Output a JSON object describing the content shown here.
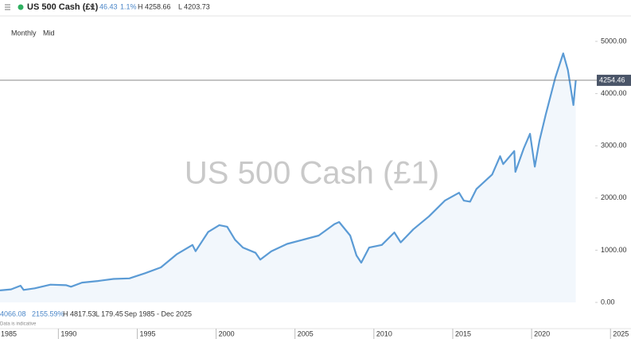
{
  "chart_data": {
    "type": "line",
    "title": "US 500 Cash (£1)",
    "header": {
      "change": "46.43",
      "change_pct": "1.1%",
      "high": "H 4258.66",
      "low": "L 4203.73"
    },
    "controls": [
      "Monthly",
      "Mid"
    ],
    "footer": {
      "close": "4066.08",
      "pct": "2155.59%",
      "high": "H 4817.53",
      "low": "L 179.45",
      "range": "Sep 1985 - Dec 2025",
      "note": "Data is indicative"
    },
    "last_value": 4254.46,
    "color": "#5b9bd5",
    "fill": "#f2f7fc",
    "grid": false,
    "x": [
      1986.3,
      1987.0,
      1987.6,
      1987.8,
      1988.5,
      1989.5,
      1990.5,
      1990.8,
      1991.5,
      1992.5,
      1993.5,
      1994.5,
      1995.5,
      1996.5,
      1997.5,
      1998.5,
      1998.7,
      1999.5,
      2000.2,
      2000.7,
      2001.2,
      2001.7,
      2002.5,
      2002.8,
      2003.5,
      2004.5,
      2005.5,
      2006.5,
      2007.5,
      2007.8,
      2008.5,
      2008.9,
      2009.2,
      2009.7,
      2010.5,
      2011.3,
      2011.7,
      2012.5,
      2013.5,
      2014.5,
      2015.4,
      2015.7,
      2016.1,
      2016.5,
      2017.5,
      2018.0,
      2018.2,
      2018.9,
      2018.97,
      2019.5,
      2019.9,
      2020.2,
      2020.5,
      2020.9,
      2021.5,
      2022.0,
      2022.3,
      2022.65,
      2022.8
    ],
    "values": [
      230,
      250,
      320,
      240,
      270,
      340,
      330,
      300,
      380,
      410,
      450,
      460,
      560,
      670,
      920,
      1100,
      980,
      1350,
      1480,
      1450,
      1200,
      1050,
      950,
      820,
      980,
      1120,
      1200,
      1280,
      1500,
      1540,
      1280,
      900,
      760,
      1050,
      1100,
      1340,
      1150,
      1400,
      1650,
      1950,
      2100,
      1950,
      1930,
      2170,
      2450,
      2800,
      2650,
      2900,
      2500,
      2950,
      3230,
      2600,
      3100,
      3600,
      4300,
      4770,
      4450,
      3780,
      4254.46
    ],
    "xlim": [
      1986.3,
      2026.3
    ],
    "xticks": [
      1985,
      1990,
      1995,
      2000,
      2005,
      2010,
      2015,
      2020,
      2025
    ],
    "ylim": [
      0,
      5000
    ],
    "yticks": [
      {
        "value": 0,
        "label": "0.00"
      },
      {
        "value": 1000,
        "label": "1000.00"
      },
      {
        "value": 2000,
        "label": "2000.00"
      },
      {
        "value": 3000,
        "label": "3000.00"
      },
      {
        "value": 4000,
        "label": "4000.00"
      },
      {
        "value": 5000,
        "label": "5000.00"
      }
    ]
  }
}
